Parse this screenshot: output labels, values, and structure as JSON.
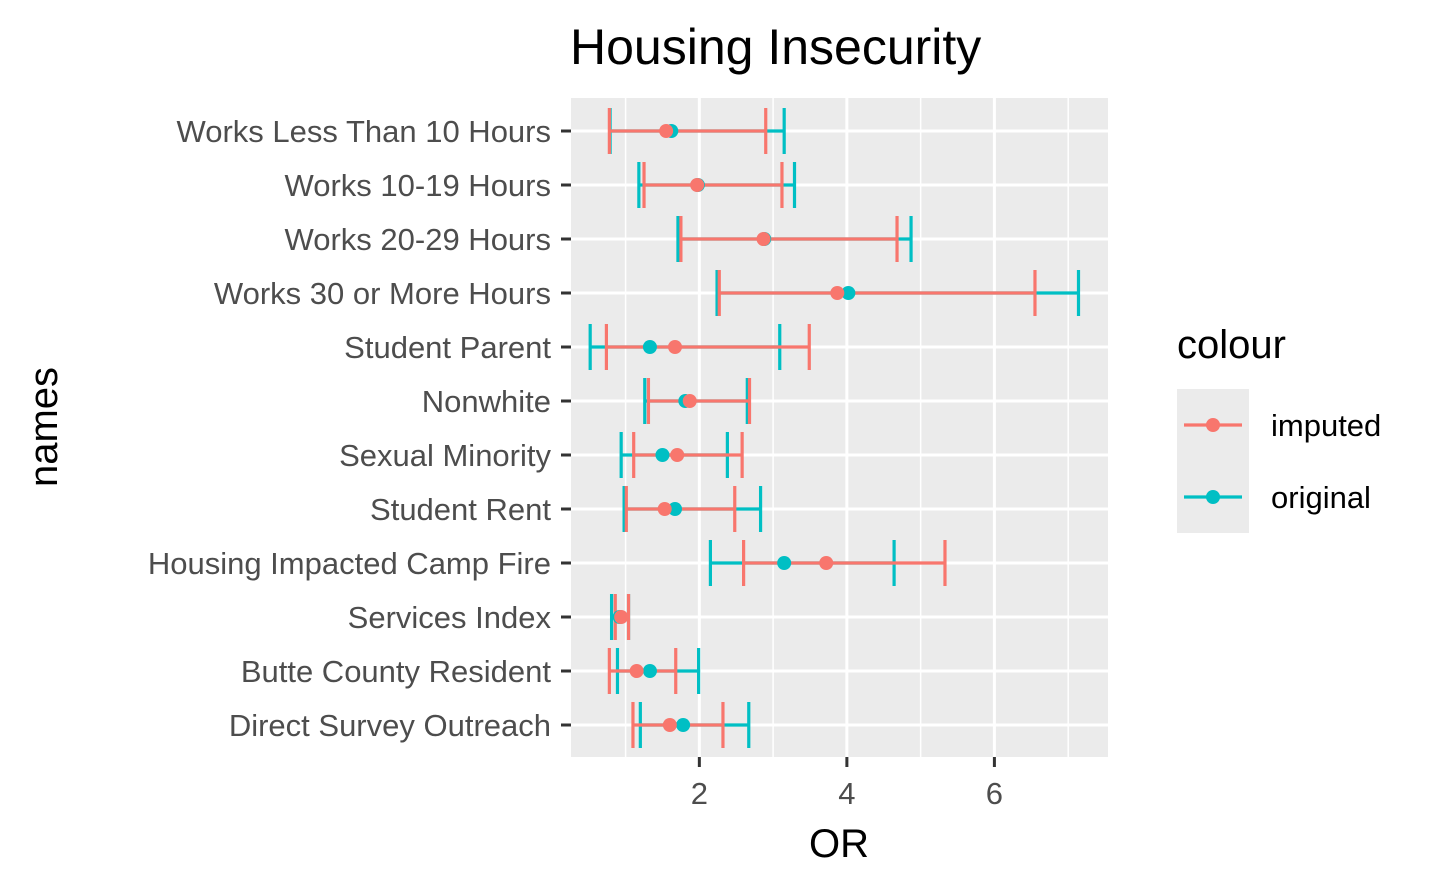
{
  "chart_data": {
    "type": "errorbar",
    "title": "Housing Insecurity",
    "xlabel": "OR",
    "ylabel": "names",
    "xlim": [
      0.26,
      7.54
    ],
    "xticks": [
      2,
      4,
      6
    ],
    "grid": true,
    "legend": {
      "title": "colour",
      "placement": "right"
    },
    "categories": [
      "Works Less Than 10 Hours",
      "Works 10-19 Hours",
      "Works 20-29 Hours",
      "Works 30 or More Hours",
      "Student Parent",
      "Nonwhite",
      "Sexual Minority",
      "Student Rent",
      "Housing Impacted Camp Fire",
      "Services Index",
      "Butte County Resident",
      "Direct Survey Outreach"
    ],
    "series": [
      {
        "name": "imputed",
        "color": "#F8766D",
        "points": [
          {
            "or": 1.55,
            "low": 0.78,
            "high": 2.9
          },
          {
            "or": 1.97,
            "low": 1.25,
            "high": 3.12
          },
          {
            "or": 2.87,
            "low": 1.75,
            "high": 4.68
          },
          {
            "or": 3.87,
            "low": 2.27,
            "high": 6.55
          },
          {
            "or": 1.67,
            "low": 0.74,
            "high": 3.49
          },
          {
            "or": 1.87,
            "low": 1.31,
            "high": 2.68
          },
          {
            "or": 1.7,
            "low": 1.11,
            "high": 2.58
          },
          {
            "or": 1.53,
            "low": 1.01,
            "high": 2.48
          },
          {
            "or": 3.72,
            "low": 2.6,
            "high": 5.33
          },
          {
            "or": 0.94,
            "low": 0.86,
            "high": 1.04
          },
          {
            "or": 1.15,
            "low": 0.78,
            "high": 1.68
          },
          {
            "or": 1.6,
            "low": 1.1,
            "high": 2.32
          }
        ]
      },
      {
        "name": "original",
        "color": "#00BFC4",
        "points": [
          {
            "or": 1.62,
            "low": 0.79,
            "high": 3.15
          },
          {
            "or": 1.98,
            "low": 1.18,
            "high": 3.29
          },
          {
            "or": 2.88,
            "low": 1.71,
            "high": 4.87
          },
          {
            "or": 4.02,
            "low": 2.24,
            "high": 7.14
          },
          {
            "or": 1.33,
            "low": 0.52,
            "high": 3.09
          },
          {
            "or": 1.81,
            "low": 1.26,
            "high": 2.65
          },
          {
            "or": 1.5,
            "low": 0.94,
            "high": 2.38
          },
          {
            "or": 1.67,
            "low": 0.98,
            "high": 2.83
          },
          {
            "or": 3.15,
            "low": 2.15,
            "high": 4.64
          },
          {
            "or": 0.92,
            "low": 0.81,
            "high": 1.04
          },
          {
            "or": 1.33,
            "low": 0.89,
            "high": 1.99
          },
          {
            "or": 1.78,
            "low": 1.2,
            "high": 2.67
          }
        ]
      }
    ]
  }
}
